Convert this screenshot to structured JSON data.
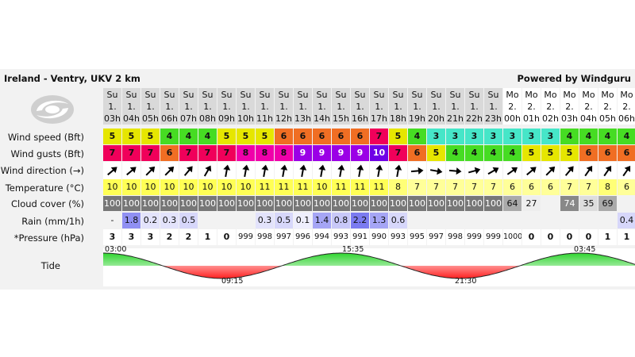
{
  "header": {
    "title": "Ireland - Ventry, UKV 2 km",
    "powered": "Powered by Windguru"
  },
  "labels": {
    "wind_speed": "Wind speed (Bft)",
    "wind_gusts": "Wind gusts (Bft)",
    "wind_direction": "Wind direction (→)",
    "temperature": "Temperature (°C)",
    "cloud": "Cloud cover (%)",
    "rain": "Rain (mm/1h)",
    "pressure": "*Pressure (hPa)",
    "tide": "Tide"
  },
  "logo_icon": "windguru-swirl-logo-icon",
  "columns": [
    {
      "day": "Su",
      "date": "1.",
      "hour": "03h",
      "ws": "5",
      "wg": "7",
      "dir": 50,
      "temp": "10",
      "cloud": "100",
      "rain": "-",
      "press": "3"
    },
    {
      "day": "Su",
      "date": "1.",
      "hour": "04h",
      "ws": "5",
      "wg": "7",
      "dir": 50,
      "temp": "10",
      "cloud": "100",
      "rain": "1.8",
      "press": "3"
    },
    {
      "day": "Su",
      "date": "1.",
      "hour": "05h",
      "ws": "5",
      "wg": "7",
      "dir": 45,
      "temp": "10",
      "cloud": "100",
      "rain": "0.2",
      "press": "3"
    },
    {
      "day": "Su",
      "date": "1.",
      "hour": "06h",
      "ws": "4",
      "wg": "6",
      "dir": 45,
      "temp": "10",
      "cloud": "100",
      "rain": "0.3",
      "press": "2"
    },
    {
      "day": "Su",
      "date": "1.",
      "hour": "07h",
      "ws": "4",
      "wg": "7",
      "dir": 40,
      "temp": "10",
      "cloud": "100",
      "rain": "0.5",
      "press": "2"
    },
    {
      "day": "Su",
      "date": "1.",
      "hour": "08h",
      "ws": "4",
      "wg": "7",
      "dir": 30,
      "temp": "10",
      "cloud": "100",
      "rain": "",
      "press": "1"
    },
    {
      "day": "Su",
      "date": "1.",
      "hour": "09h",
      "ws": "5",
      "wg": "7",
      "dir": 10,
      "temp": "10",
      "cloud": "100",
      "rain": "",
      "press": "0"
    },
    {
      "day": "Su",
      "date": "1.",
      "hour": "10h",
      "ws": "5",
      "wg": "8",
      "dir": 10,
      "temp": "10",
      "cloud": "100",
      "rain": "",
      "press": "999"
    },
    {
      "day": "Su",
      "date": "1.",
      "hour": "11h",
      "ws": "5",
      "wg": "8",
      "dir": 10,
      "temp": "11",
      "cloud": "100",
      "rain": "0.3",
      "press": "998"
    },
    {
      "day": "Su",
      "date": "1.",
      "hour": "12h",
      "ws": "6",
      "wg": "8",
      "dir": 10,
      "temp": "11",
      "cloud": "100",
      "rain": "0.5",
      "press": "997"
    },
    {
      "day": "Su",
      "date": "1.",
      "hour": "13h",
      "ws": "6",
      "wg": "9",
      "dir": 10,
      "temp": "11",
      "cloud": "100",
      "rain": "0.1",
      "press": "996"
    },
    {
      "day": "Su",
      "date": "1.",
      "hour": "14h",
      "ws": "6",
      "wg": "9",
      "dir": 10,
      "temp": "10",
      "cloud": "100",
      "rain": "1.4",
      "press": "994"
    },
    {
      "day": "Su",
      "date": "1.",
      "hour": "15h",
      "ws": "6",
      "wg": "9",
      "dir": 10,
      "temp": "11",
      "cloud": "100",
      "rain": "0.8",
      "press": "993"
    },
    {
      "day": "Su",
      "date": "1.",
      "hour": "16h",
      "ws": "6",
      "wg": "9",
      "dir": 10,
      "temp": "11",
      "cloud": "100",
      "rain": "2.2",
      "press": "991"
    },
    {
      "day": "Su",
      "date": "1.",
      "hour": "17h",
      "ws": "7",
      "wg": "10",
      "dir": 10,
      "temp": "11",
      "cloud": "100",
      "rain": "1.3",
      "press": "990"
    },
    {
      "day": "Su",
      "date": "1.",
      "hour": "18h",
      "ws": "5",
      "wg": "7",
      "dir": 10,
      "temp": "8",
      "cloud": "100",
      "rain": "0.6",
      "press": "993"
    },
    {
      "day": "Su",
      "date": "1.",
      "hour": "19h",
      "ws": "4",
      "wg": "6",
      "dir": 85,
      "temp": "7",
      "cloud": "100",
      "rain": "",
      "press": "995"
    },
    {
      "day": "Su",
      "date": "1.",
      "hour": "20h",
      "ws": "3",
      "wg": "5",
      "dir": 100,
      "temp": "7",
      "cloud": "100",
      "rain": "",
      "press": "997"
    },
    {
      "day": "Su",
      "date": "1.",
      "hour": "21h",
      "ws": "3",
      "wg": "4",
      "dir": 95,
      "temp": "7",
      "cloud": "100",
      "rain": "",
      "press": "998"
    },
    {
      "day": "Su",
      "date": "1.",
      "hour": "22h",
      "ws": "3",
      "wg": "4",
      "dir": 75,
      "temp": "7",
      "cloud": "100",
      "rain": "",
      "press": "999"
    },
    {
      "day": "Su",
      "date": "1.",
      "hour": "23h",
      "ws": "3",
      "wg": "4",
      "dir": 60,
      "temp": "7",
      "cloud": "100",
      "rain": "",
      "press": "999"
    },
    {
      "day": "Mo",
      "date": "2.",
      "hour": "00h",
      "ws": "3",
      "wg": "4",
      "dir": 55,
      "temp": "6",
      "cloud": "64",
      "rain": "",
      "press": "1000"
    },
    {
      "day": "Mo",
      "date": "2.",
      "hour": "01h",
      "ws": "3",
      "wg": "5",
      "dir": 50,
      "temp": "6",
      "cloud": "27",
      "rain": "",
      "press": "0"
    },
    {
      "day": "Mo",
      "date": "2.",
      "hour": "02h",
      "ws": "3",
      "wg": "5",
      "dir": 45,
      "temp": "6",
      "cloud": "",
      "rain": "",
      "press": "0"
    },
    {
      "day": "Mo",
      "date": "2.",
      "hour": "03h",
      "ws": "4",
      "wg": "5",
      "dir": 40,
      "temp": "7",
      "cloud": "74",
      "rain": "",
      "press": "0"
    },
    {
      "day": "Mo",
      "date": "2.",
      "hour": "04h",
      "ws": "4",
      "wg": "6",
      "dir": 35,
      "temp": "7",
      "cloud": "35",
      "rain": "",
      "press": "0"
    },
    {
      "day": "Mo",
      "date": "2.",
      "hour": "05h",
      "ws": "4",
      "wg": "6",
      "dir": 35,
      "temp": "8",
      "cloud": "69",
      "rain": "",
      "press": "1"
    },
    {
      "day": "Mo",
      "date": "2.",
      "hour": "06h",
      "ws": "4",
      "wg": "6",
      "dir": 35,
      "temp": "6",
      "cloud": "",
      "rain": "0.4",
      "press": "1"
    }
  ],
  "tide": {
    "labels": [
      "03:00",
      "09:15",
      "15:35",
      "21:30",
      "03:45"
    ]
  },
  "colors": {
    "bft": {
      "3": "#46e6c8",
      "4": "#46dc23",
      "5": "#e6e600",
      "6": "#f06e23",
      "7": "#f0005a",
      "8": "#f000aa",
      "9": "#9b00e6",
      "10": "#6e00e6"
    },
    "high_tide": "#2fd42f",
    "low_tide": "#ff2020"
  }
}
